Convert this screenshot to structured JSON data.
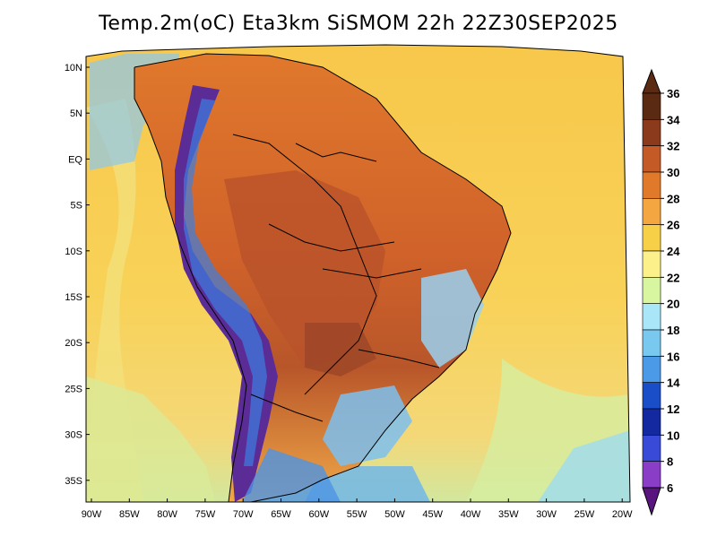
{
  "title": "Temp.2m(oC) Eta3km SiSMOM 22h 22Z30SEP2025",
  "lat_labels": [
    "10N",
    "5N",
    "EQ",
    "5S",
    "10S",
    "15S",
    "20S",
    "25S",
    "30S",
    "35S"
  ],
  "lon_labels": [
    "90W",
    "85W",
    "80W",
    "75W",
    "70W",
    "65W",
    "60W",
    "55W",
    "50W",
    "45W",
    "40W",
    "35W",
    "30W",
    "25W",
    "20W"
  ],
  "colorbar": {
    "labels": [
      "36",
      "34",
      "32",
      "30",
      "28",
      "26",
      "24",
      "22",
      "20",
      "18",
      "16",
      "14",
      "12",
      "10",
      "8",
      "6"
    ],
    "colors": [
      "#5a2a12",
      "#8c3a1c",
      "#c45a26",
      "#e07a2a",
      "#f4a640",
      "#f8d048",
      "#fbf08a",
      "#d8f6a0",
      "#a8e6f8",
      "#78c8f0",
      "#4a9ae8",
      "#1a4ec8",
      "#1428a0",
      "#3a4ad8",
      "#8a3ec8",
      "#5a1480"
    ]
  },
  "colors": {
    "ocean_warm": "#f6c045",
    "ocean_mid": "#f9e070",
    "ocean_cool": "#d6f2a0",
    "land_hot": "#d4662a",
    "land_hotter": "#b04a1e",
    "andes_cold": "#4b2a90",
    "south_cold": "#58a8e8"
  }
}
